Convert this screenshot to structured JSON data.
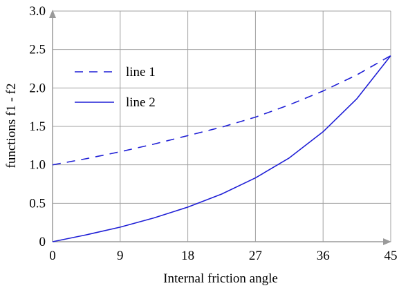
{
  "chart_data": {
    "type": "line",
    "title": "",
    "xlabel": "Internal friction angle",
    "ylabel": "functions f1 - f2",
    "xlim": [
      0,
      45
    ],
    "ylim": [
      0,
      3.0
    ],
    "x_ticks": [
      "0",
      "9",
      "18",
      "27",
      "36",
      "45"
    ],
    "y_ticks": [
      "0",
      "0.5",
      "1.0",
      "1.5",
      "2.0",
      "2.5",
      "3.0"
    ],
    "grid": true,
    "legend_position": "upper-left",
    "series": [
      {
        "name": "line 1",
        "style": "dashed",
        "color": "#1f1fd6",
        "x": [
          0,
          4.5,
          9,
          13.5,
          18,
          22.5,
          27,
          31.5,
          36,
          40.5,
          45
        ],
        "y": [
          1.0,
          1.08,
          1.17,
          1.27,
          1.38,
          1.49,
          1.62,
          1.78,
          1.96,
          2.17,
          2.42
        ]
      },
      {
        "name": "line 2",
        "style": "solid",
        "color": "#1f1fd6",
        "x": [
          0,
          4.5,
          9,
          13.5,
          18,
          22.5,
          27,
          31.5,
          36,
          40.5,
          45
        ],
        "y": [
          0.0,
          0.09,
          0.19,
          0.31,
          0.45,
          0.62,
          0.83,
          1.09,
          1.43,
          1.86,
          2.42
        ]
      }
    ]
  }
}
